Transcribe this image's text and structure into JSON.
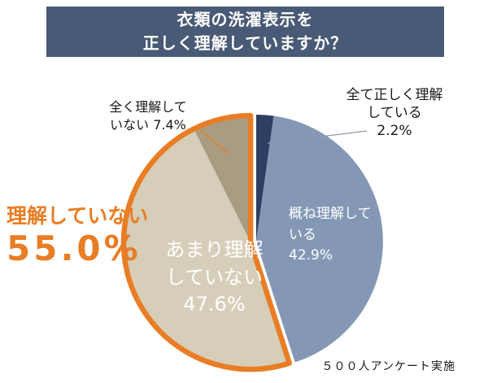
{
  "header": {
    "title_line1": "衣類の洗濯表示を",
    "title_line2": "正しく理解していますか？",
    "bg_color": "#495a76"
  },
  "chart_data": {
    "type": "pie",
    "title": "衣類の洗濯表示を正しく理解していますか？",
    "unit": "%",
    "start_angle_deg": 0,
    "direction": "clockwise",
    "slices": [
      {
        "label": "全て正しく理解している",
        "value": 2.2,
        "color": "#2d3f63"
      },
      {
        "label": "概ね理解している",
        "value": 42.9,
        "color": "#8498b6"
      },
      {
        "label": "あまり理解していない",
        "value": 47.6,
        "color": "#d7ceba"
      },
      {
        "label": "全く理解していない",
        "value": 7.4,
        "color": "#a89d82"
      }
    ],
    "highlight": {
      "label": "理解していない",
      "value": 55.0,
      "slice_indexes": [
        2,
        3
      ],
      "color": "#e97d25"
    },
    "annotation": "５００人アンケート実施"
  },
  "labels": {
    "slice_all": {
      "line1": "全て正しく理解",
      "line2": "している",
      "pct": "2.2%"
    },
    "slice_none": {
      "line1": "全く理解して",
      "line2": "いない",
      "pct": "7.4%"
    },
    "slice_mostly": {
      "line1": "概ね理解して",
      "line2": "いる",
      "pct": "42.9%"
    },
    "slice_notmuch": {
      "line1": "あまり理解",
      "line2": "していない",
      "pct": "47.6%"
    },
    "group": {
      "title": "理解していない",
      "pct": "55.0%"
    },
    "footer": "５００人アンケート実施"
  }
}
